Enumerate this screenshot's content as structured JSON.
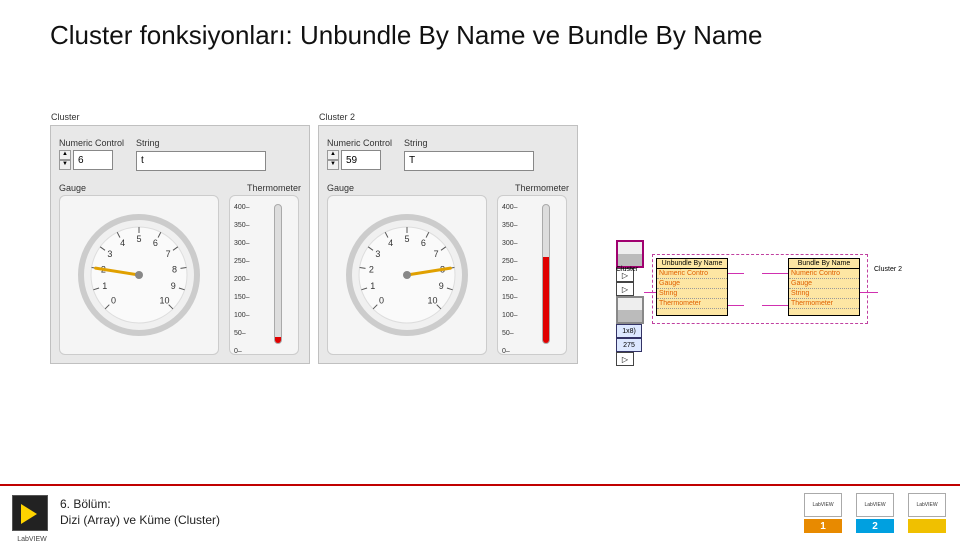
{
  "title": "Cluster fonksiyonları: Unbundle By Name ve Bundle By Name",
  "cluster1": {
    "label": "Cluster",
    "numeric_label": "Numeric Control",
    "numeric_value": "6",
    "string_label": "String",
    "string_value": "t",
    "gauge_label": "Gauge",
    "thermo_label": "Thermometer",
    "gauge": {
      "ticks": [
        "0",
        "1",
        "2",
        "3",
        "4",
        "5",
        "6",
        "7",
        "8",
        "9",
        "10"
      ],
      "value": 2.0,
      "needle_color": "#e0a000",
      "face_color": "#f0f0f0",
      "rim_color": "#cccccc"
    },
    "thermo": {
      "ticks": [
        "400",
        "350",
        "300",
        "250",
        "200",
        "150",
        "100",
        "50",
        "0"
      ],
      "value_pct": 4,
      "fill_color": "#e00000"
    }
  },
  "cluster2": {
    "label": "Cluster 2",
    "numeric_label": "Numeric Control",
    "numeric_value": "59",
    "string_label": "String",
    "string_value": "T",
    "gauge_label": "Gauge",
    "thermo_label": "Thermometer",
    "gauge": {
      "ticks": [
        "0",
        "1",
        "2",
        "3",
        "4",
        "5",
        "6",
        "7",
        "8",
        "9",
        "10"
      ],
      "value": 8.0,
      "needle_color": "#e0a000",
      "face_color": "#f0f0f0",
      "rim_color": "#cccccc"
    },
    "thermo": {
      "ticks": [
        "400",
        "350",
        "300",
        "250",
        "200",
        "150",
        "100",
        "50",
        "0"
      ],
      "value_pct": 62,
      "fill_color": "#e00000"
    }
  },
  "diagram": {
    "unbundle_label": "Unbundle By Name",
    "bundle_label": "Bundle By Name",
    "cluster_in": "Cluster",
    "cluster_out": "Cluster 2",
    "rows": [
      "Numeric Contro",
      "Gauge",
      "String",
      "Thermometer"
    ],
    "const1": "1x8)",
    "const2": "275"
  },
  "footer": {
    "line1": "6. Bölüm:",
    "line2": "Dizi (Array) ve Küme (Cluster)",
    "logo_label": "LabVIEW",
    "books": [
      {
        "cover": "LabVIEW",
        "num": "1"
      },
      {
        "cover": "LabVIEW",
        "num": "2"
      },
      {
        "cover": "LabVIEW",
        "num": ""
      }
    ]
  }
}
